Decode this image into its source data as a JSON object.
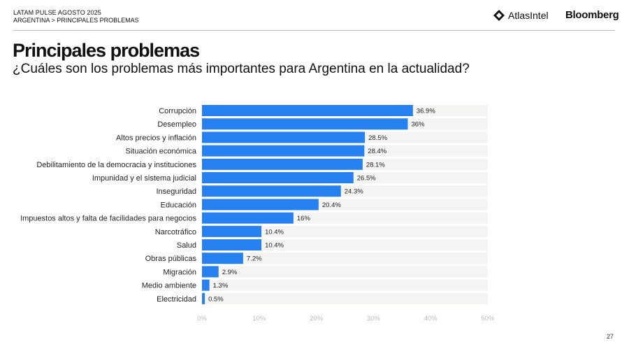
{
  "header": {
    "line1": "LATAM PULSE AGOSTO 2025",
    "line2": "ARGENTINA > PRINCIPALES PROBLEMAS",
    "logo_atlas": "AtlasIntel",
    "logo_bloomberg": "Bloomberg"
  },
  "page_title": "Principales problemas",
  "page_subtitle": "¿Cuáles son los problemas más importantes para Argentina en la actualidad?",
  "page_number": "27",
  "colors": {
    "bar": "#2680f0",
    "track": "#f4f4f2"
  },
  "chart_data": {
    "type": "bar",
    "orientation": "horizontal",
    "categories": [
      "Corrupción",
      "Desempleo",
      "Altos precios y inflación",
      "Situación económica",
      "Debilitamiento de la democracia y instituciones",
      "Impunidad y el sistema judicial",
      "Inseguridad",
      "Educación",
      "Impuestos altos y falta de facilidades para negocios",
      "Narcotráfico",
      "Salud",
      "Obras públicas",
      "Migración",
      "Medio ambiente",
      "Electricidad"
    ],
    "values": [
      36.9,
      36,
      28.5,
      28.4,
      28.1,
      26.5,
      24.3,
      20.4,
      16,
      10.4,
      10.4,
      7.2,
      2.9,
      1.3,
      0.5
    ],
    "data_labels": [
      "36.9%",
      "36%",
      "28.5%",
      "28.4%",
      "28.1%",
      "26.5%",
      "24.3%",
      "20.4%",
      "16%",
      "10.4%",
      "10.4%",
      "7.2%",
      "2.9%",
      "1.3%",
      "0.5%"
    ],
    "xlim": [
      0,
      50
    ],
    "xticks": [
      "0%",
      "10%",
      "20%",
      "30%",
      "40%",
      "50%"
    ],
    "grid": false
  }
}
